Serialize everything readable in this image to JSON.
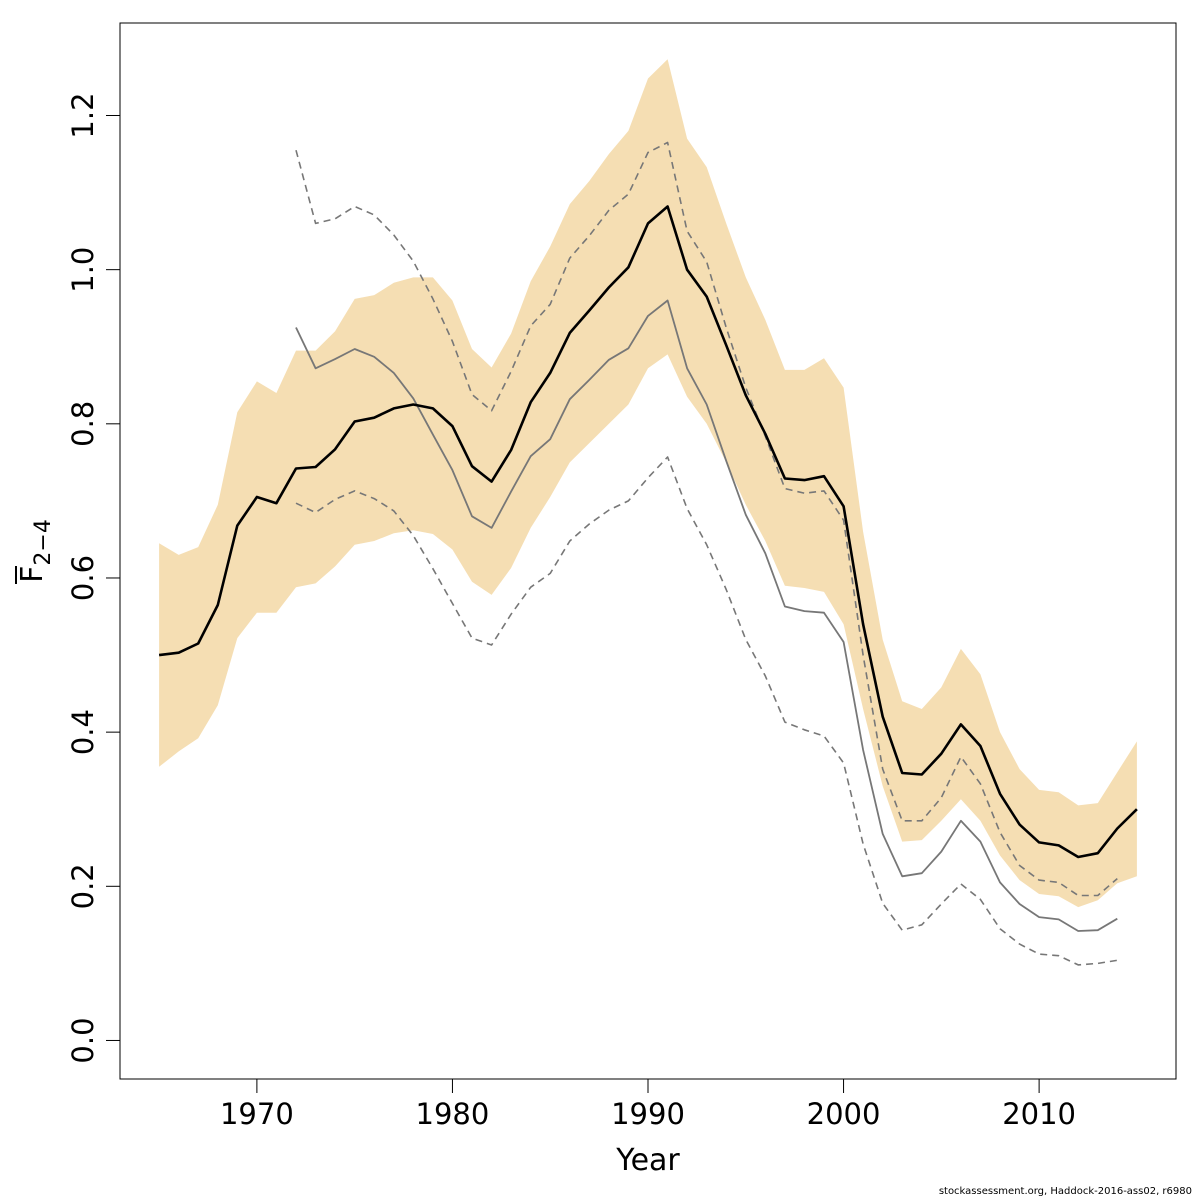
{
  "chart_data": {
    "type": "line",
    "xlabel": "Year",
    "ylabel_main": "F",
    "ylabel_sub": "2−4",
    "xlim": [
      1963,
      2017
    ],
    "ylim": [
      -0.05,
      1.32
    ],
    "x_ticks": [
      1970,
      1980,
      1990,
      2000,
      2010
    ],
    "y_ticks": [
      0.0,
      0.2,
      0.4,
      0.6,
      0.8,
      1.0,
      1.2
    ],
    "x_tick_labels": [
      "1970",
      "1980",
      "1990",
      "2000",
      "2010"
    ],
    "y_tick_labels": [
      "0.0",
      "0.2",
      "0.4",
      "0.6",
      "0.8",
      "1.0",
      "1.2"
    ],
    "colors": {
      "band": "#f5deb3",
      "estimate": "#000000",
      "retro": "#777777",
      "retro_ci": "#777777"
    },
    "x": [
      1965,
      1966,
      1967,
      1968,
      1969,
      1970,
      1971,
      1972,
      1973,
      1974,
      1975,
      1976,
      1977,
      1978,
      1979,
      1980,
      1981,
      1982,
      1983,
      1984,
      1985,
      1986,
      1987,
      1988,
      1989,
      1990,
      1991,
      1992,
      1993,
      1994,
      1995,
      1996,
      1997,
      1998,
      1999,
      2000,
      2001,
      2002,
      2003,
      2004,
      2005,
      2006,
      2007,
      2008,
      2009,
      2010,
      2011,
      2012,
      2013,
      2014,
      2015
    ],
    "band_upper": [
      0.645,
      0.63,
      0.64,
      0.695,
      0.815,
      0.855,
      0.84,
      0.895,
      0.895,
      0.92,
      0.962,
      0.967,
      0.983,
      0.99,
      0.99,
      0.96,
      0.897,
      0.873,
      0.917,
      0.985,
      1.03,
      1.085,
      1.115,
      1.15,
      1.18,
      1.248,
      1.273,
      1.17,
      1.133,
      1.06,
      0.99,
      0.935,
      0.87,
      0.87,
      0.885,
      0.847,
      0.66,
      0.52,
      0.44,
      0.43,
      0.458,
      0.508,
      0.475,
      0.4,
      0.352,
      0.325,
      0.322,
      0.305,
      0.308,
      0.348,
      0.388
    ],
    "band_lower": [
      0.355,
      0.375,
      0.392,
      0.435,
      0.522,
      0.555,
      0.555,
      0.588,
      0.593,
      0.615,
      0.643,
      0.648,
      0.658,
      0.662,
      0.657,
      0.637,
      0.595,
      0.578,
      0.613,
      0.665,
      0.705,
      0.75,
      0.775,
      0.8,
      0.825,
      0.872,
      0.89,
      0.835,
      0.8,
      0.75,
      0.695,
      0.648,
      0.59,
      0.587,
      0.582,
      0.54,
      0.43,
      0.33,
      0.258,
      0.26,
      0.285,
      0.313,
      0.285,
      0.24,
      0.208,
      0.19,
      0.187,
      0.173,
      0.182,
      0.204,
      0.213
    ],
    "series": [
      {
        "values": [
          0.5,
          0.503,
          0.515,
          0.565,
          0.668,
          0.705,
          0.697,
          0.742,
          0.744,
          0.767,
          0.803,
          0.808,
          0.82,
          0.825,
          0.82,
          0.797,
          0.745,
          0.725,
          0.766,
          0.828,
          0.866,
          0.918,
          0.947,
          0.977,
          1.003,
          1.06,
          1.082,
          1.0,
          0.965,
          0.902,
          0.837,
          0.787,
          0.729,
          0.727,
          0.732,
          0.693,
          0.54,
          0.42,
          0.347,
          0.345,
          0.372,
          0.41,
          0.382,
          0.32,
          0.28,
          0.257,
          0.253,
          0.238,
          0.243,
          0.275,
          0.3
        ]
      },
      {
        "x": [
          1972,
          1973,
          1974,
          1975,
          1976,
          1977,
          1978,
          1979,
          1980,
          1981,
          1982,
          1983,
          1984,
          1985,
          1986,
          1987,
          1988,
          1989,
          1990,
          1991,
          1992,
          1993,
          1994,
          1995,
          1996,
          1997,
          1998,
          1999,
          2000,
          2001,
          2002,
          2003,
          2004,
          2005,
          2006,
          2007,
          2008,
          2009,
          2010,
          2011,
          2012,
          2013,
          2014
        ],
        "values": [
          0.925,
          0.872,
          0.884,
          0.897,
          0.887,
          0.866,
          0.833,
          0.786,
          0.74,
          0.68,
          0.665,
          0.712,
          0.758,
          0.78,
          0.832,
          0.857,
          0.883,
          0.898,
          0.94,
          0.96,
          0.872,
          0.825,
          0.752,
          0.682,
          0.632,
          0.563,
          0.557,
          0.555,
          0.517,
          0.377,
          0.268,
          0.213,
          0.217,
          0.245,
          0.285,
          0.258,
          0.205,
          0.177,
          0.16,
          0.157,
          0.142,
          0.143,
          0.158
        ]
      },
      {
        "x": [
          1972,
          1973,
          1974,
          1975,
          1976,
          1977,
          1978,
          1979,
          1980,
          1981,
          1982,
          1983,
          1984,
          1985,
          1986,
          1987,
          1988,
          1989,
          1990,
          1991,
          1992,
          1993,
          1994,
          1995,
          1996,
          1997,
          1998,
          1999,
          2000,
          2001,
          2002,
          2003,
          2004,
          2005,
          2006,
          2007,
          2008,
          2009,
          2010,
          2011,
          2012,
          2013,
          2014
        ],
        "values": [
          1.155,
          1.06,
          1.066,
          1.082,
          1.071,
          1.045,
          1.011,
          0.962,
          0.907,
          0.838,
          0.817,
          0.868,
          0.927,
          0.955,
          1.015,
          1.044,
          1.077,
          1.098,
          1.152,
          1.165,
          1.05,
          1.01,
          0.925,
          0.847,
          0.784,
          0.716,
          0.71,
          0.713,
          0.675,
          0.5,
          0.352,
          0.285,
          0.285,
          0.315,
          0.368,
          0.333,
          0.27,
          0.227,
          0.208,
          0.205,
          0.188,
          0.188,
          0.21
        ]
      },
      {
        "x": [
          1972,
          1973,
          1974,
          1975,
          1976,
          1977,
          1978,
          1979,
          1980,
          1981,
          1982,
          1983,
          1984,
          1985,
          1986,
          1987,
          1988,
          1989,
          1990,
          1991,
          1992,
          1993,
          1994,
          1995,
          1996,
          1997,
          1998,
          1999,
          2000,
          2001,
          2002,
          2003,
          2004,
          2005,
          2006,
          2007,
          2008,
          2009,
          2010,
          2011,
          2012,
          2013,
          2014
        ],
        "values": [
          0.697,
          0.685,
          0.702,
          0.713,
          0.703,
          0.687,
          0.655,
          0.612,
          0.567,
          0.522,
          0.513,
          0.553,
          0.588,
          0.606,
          0.648,
          0.67,
          0.688,
          0.7,
          0.73,
          0.757,
          0.69,
          0.643,
          0.585,
          0.52,
          0.473,
          0.413,
          0.403,
          0.395,
          0.36,
          0.255,
          0.178,
          0.143,
          0.15,
          0.177,
          0.203,
          0.183,
          0.145,
          0.125,
          0.112,
          0.11,
          0.098,
          0.1,
          0.104
        ]
      }
    ]
  },
  "footer": {
    "text": "stockassessment.org, Haddock-2016-ass02, r6980"
  }
}
